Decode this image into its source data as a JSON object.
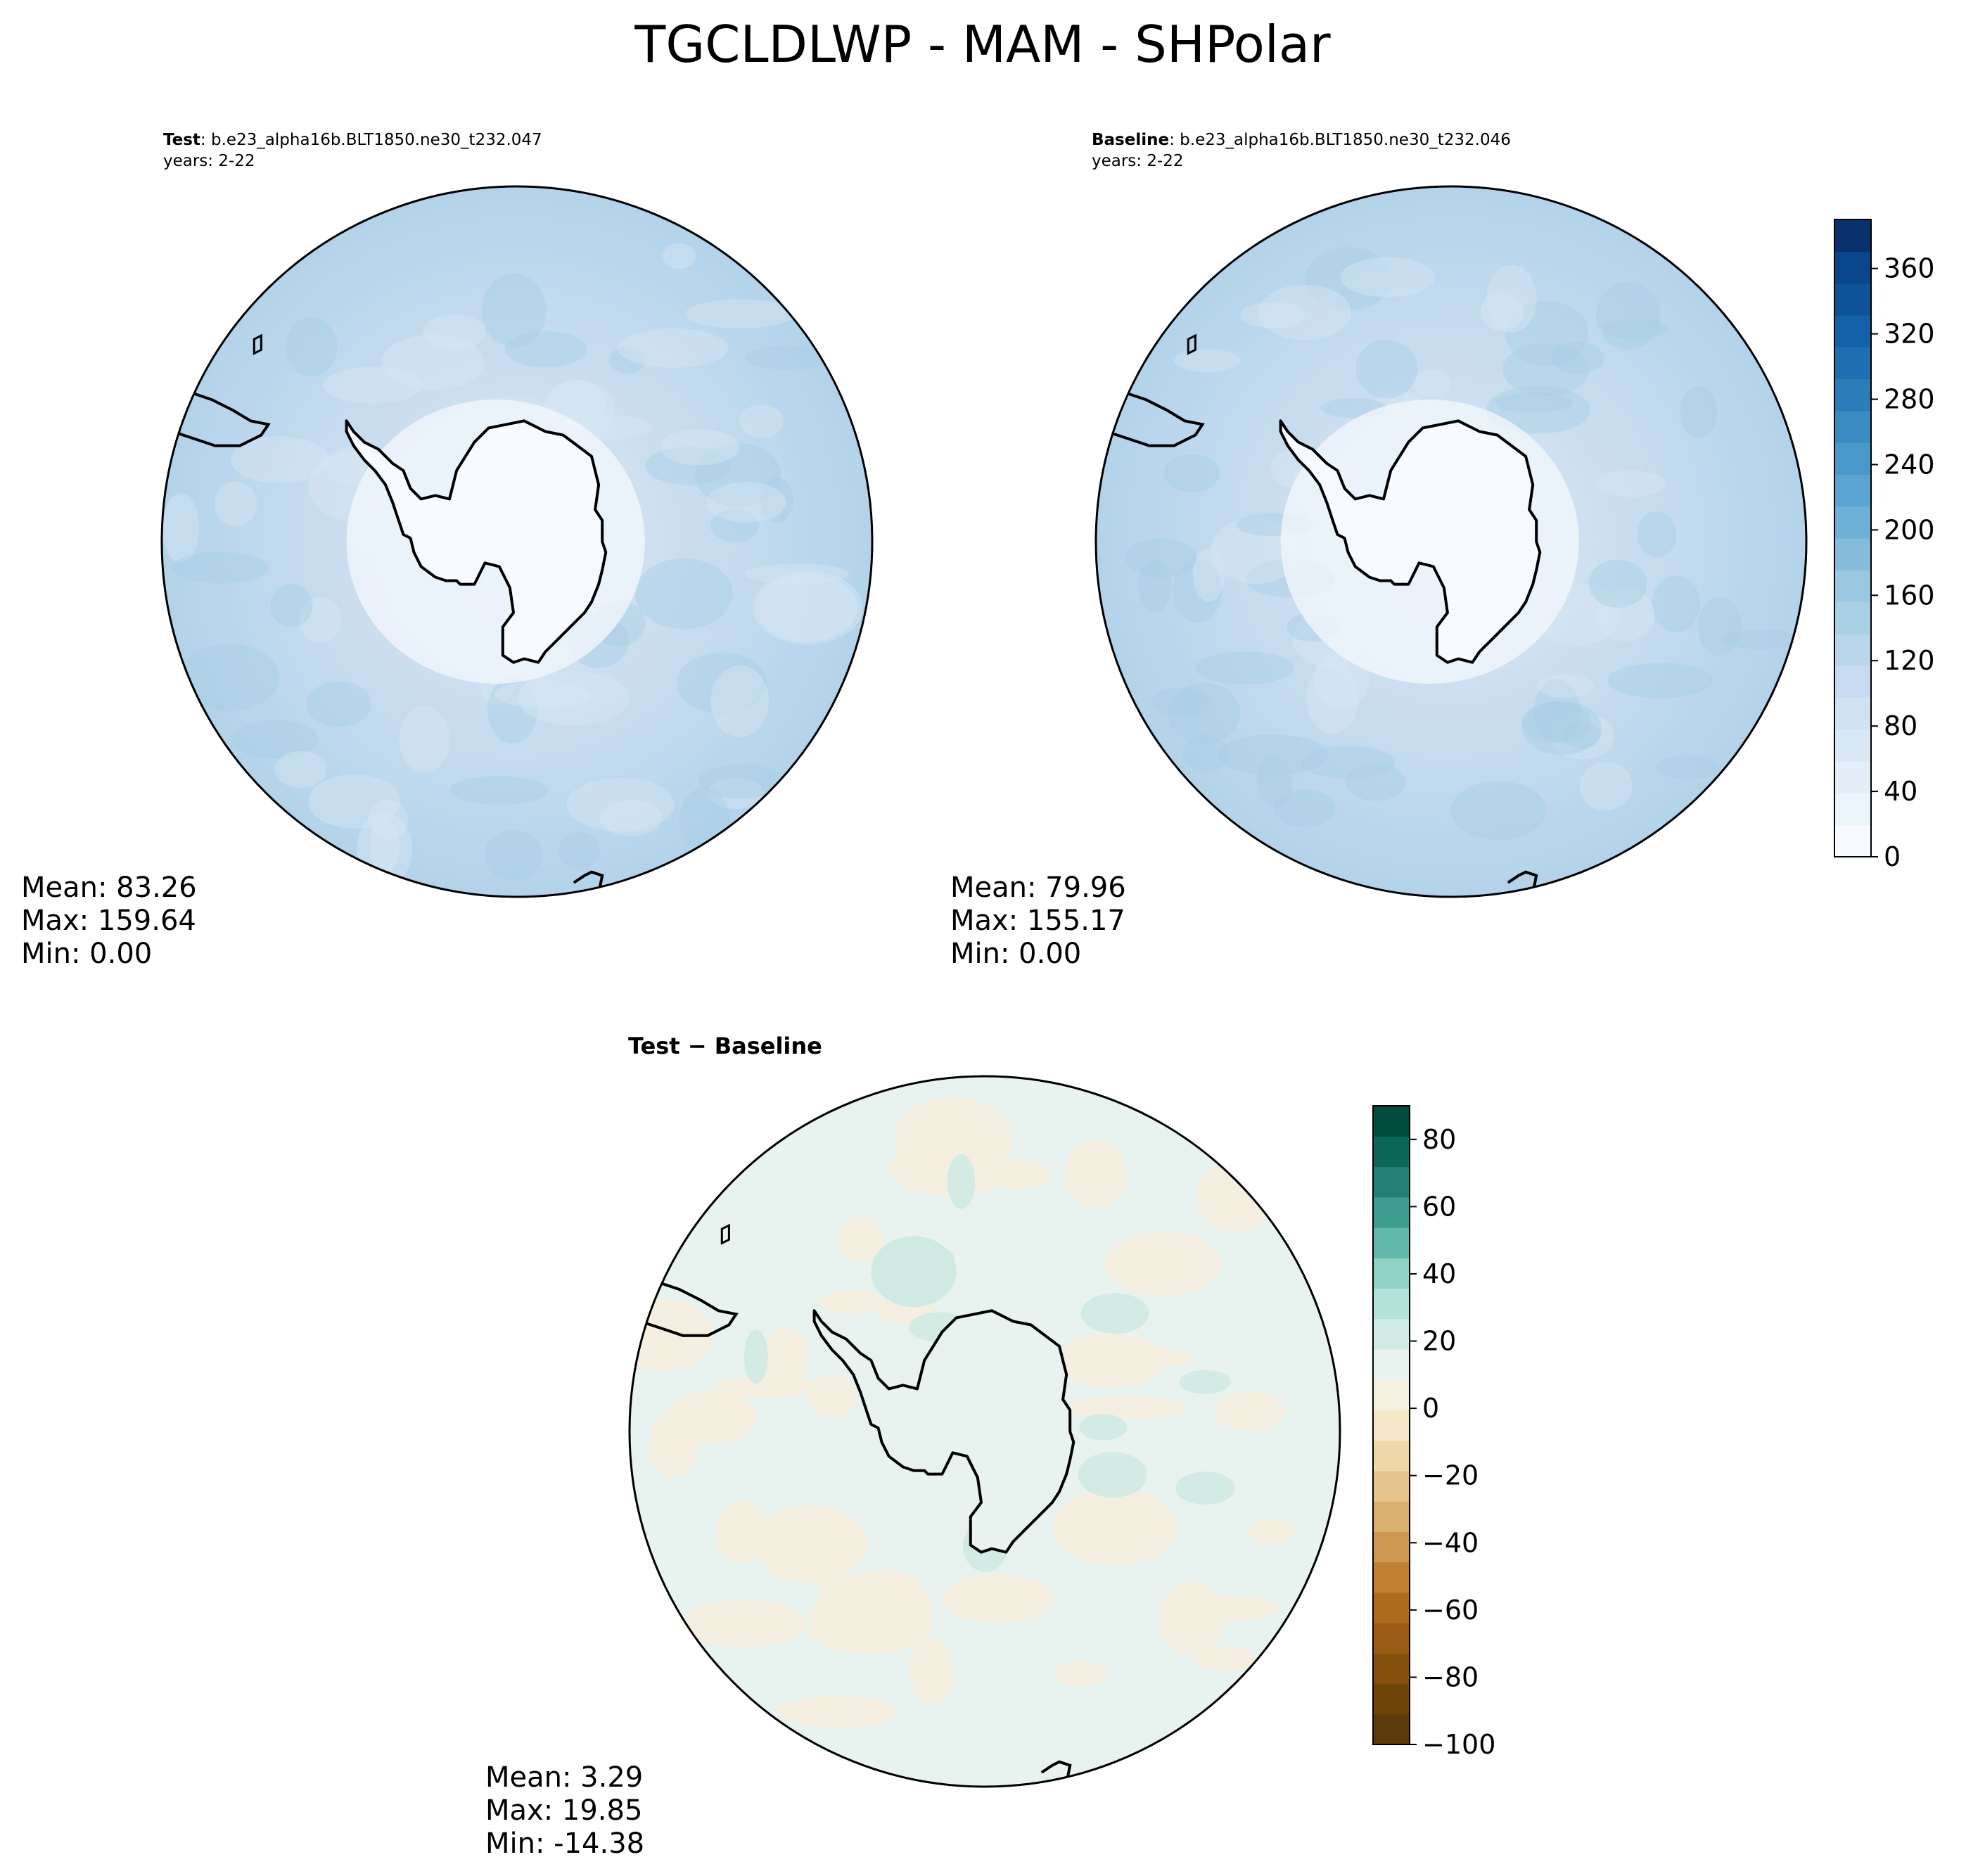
{
  "figure": {
    "title": "TGCLDLWP - MAM - SHPolar"
  },
  "panels": [
    {
      "id": "test",
      "label_bold": "Test",
      "label_rest": ": b.e23_alpha16b.BLT1850.ne30_t232.047",
      "years": "years: 2-22",
      "stats": {
        "mean": "Mean: 83.26",
        "max": "Max: 159.64",
        "min": "Min:  0.00"
      }
    },
    {
      "id": "baseline",
      "label_bold": "Baseline",
      "label_rest": ": b.e23_alpha16b.BLT1850.ne30_t232.046",
      "years": "years: 2-22",
      "stats": {
        "mean": "Mean: 79.96",
        "max": "Max: 155.17",
        "min": "Min:  0.00"
      }
    },
    {
      "id": "diff",
      "label_bold": "Test − Baseline",
      "stats": {
        "mean": "Mean:  3.29",
        "max": "Max: 19.85",
        "min": "Min: -14.38"
      }
    }
  ],
  "colorbars": {
    "field": {
      "ticks": [
        "0",
        "40",
        "80",
        "120",
        "160",
        "200",
        "240",
        "280",
        "320",
        "360"
      ],
      "min": 0,
      "max": 390,
      "colors": [
        "#f7fbff",
        "#ecf4fc",
        "#e3eef9",
        "#dae8f6",
        "#d0e2f2",
        "#c6dbef",
        "#b9d6ea",
        "#a9cfe5",
        "#9ac8e0",
        "#85bcdc",
        "#6fb0d7",
        "#5ba3d0",
        "#4a98c9",
        "#3a8bc2",
        "#2c7cba",
        "#1f6eb2",
        "#1561a9",
        "#0c539a",
        "#08458a",
        "#08306b"
      ]
    },
    "diff": {
      "ticks": [
        "−100",
        "−80",
        "−60",
        "−40",
        "−20",
        "0",
        "20",
        "40",
        "60",
        "80"
      ],
      "min": -100,
      "max": 90,
      "colors": [
        "#5d3a0a",
        "#6f4409",
        "#844f0c",
        "#9a5b14",
        "#ad6b1e",
        "#bf8032",
        "#ce9752",
        "#dbaf6e",
        "#e6c58c",
        "#efd9aa",
        "#f5e7c7",
        "#f6f0e1",
        "#e8f2ef",
        "#d1ece7",
        "#b2e2d9",
        "#8ed3c6",
        "#62b8ab",
        "#3d9b90",
        "#217f75",
        "#0b6558",
        "#024b3f"
      ]
    },
    "field_colors": {
      "ocean": "#c6dbef",
      "ocean_dark": "#a9cfe5",
      "continent": "#f7fbff",
      "coast": "#000000"
    },
    "diff_colors": {
      "base": "#e8f2ef",
      "neg": "#f5eedf",
      "pos": "#cfeae3"
    }
  }
}
